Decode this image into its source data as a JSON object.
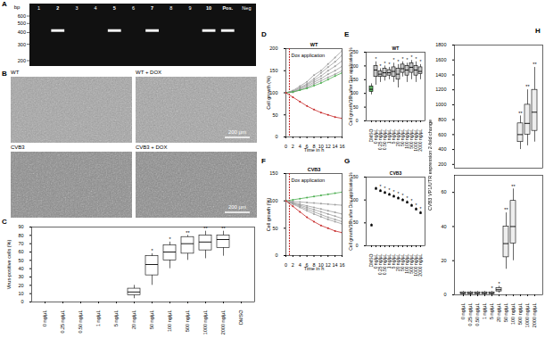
{
  "gel": {
    "panel": "A",
    "y_label": "bp",
    "marker_bp": [
      600,
      500,
      400,
      300,
      200
    ],
    "lanes": [
      "1",
      "2",
      "3",
      "4",
      "5",
      "6",
      "7",
      "8",
      "9",
      "10",
      "Pos.",
      "Neg"
    ],
    "band_lanes": [
      "2",
      "5",
      "7",
      "10",
      "Pos."
    ],
    "band_bp": 420
  },
  "micrographs": {
    "panel": "B",
    "images": [
      {
        "label": "WT"
      },
      {
        "label": "WT + DOX",
        "scale_bar": "200 µm"
      },
      {
        "label": "CVB3"
      },
      {
        "label": "CVB3 + DOX",
        "scale_bar": "200 µm"
      }
    ]
  },
  "chart_data": [
    {
      "panel": "C",
      "type": "box",
      "y_label": "Virus-positive cells (%)",
      "categories": [
        "0 ng/µL",
        "0.25 ng/µL",
        "0.50 ng/µL",
        "1 ng/µL",
        "5 ng/µL",
        "20 ng/µL",
        "50 ng/µL",
        "100 ng/µL",
        "500 ng/µL",
        "1000 ng/µL",
        "2000 ng/µL",
        "DMSO"
      ],
      "boxes": [
        {
          "min": 0,
          "q1": 0,
          "median": 0,
          "q3": 0,
          "max": 0
        },
        {
          "min": 0,
          "q1": 0,
          "median": 0,
          "q3": 0,
          "max": 0
        },
        {
          "min": 0,
          "q1": 0,
          "median": 0,
          "q3": 0,
          "max": 0
        },
        {
          "min": 0,
          "q1": 0,
          "median": 0,
          "q3": 0,
          "max": 0
        },
        {
          "min": 0,
          "q1": 0,
          "median": 0,
          "q3": 0,
          "max": 0
        },
        {
          "min": 4,
          "q1": 8,
          "median": 12,
          "q3": 16,
          "max": 20
        },
        {
          "min": 20,
          "q1": 32,
          "median": 45,
          "q3": 55,
          "max": 58
        },
        {
          "min": 40,
          "q1": 50,
          "median": 60,
          "q3": 68,
          "max": 72
        },
        {
          "min": 50,
          "q1": 58,
          "median": 70,
          "q3": 78,
          "max": 80
        },
        {
          "min": 52,
          "q1": 62,
          "median": 72,
          "q3": 80,
          "max": 85
        },
        {
          "min": 55,
          "q1": 65,
          "median": 75,
          "q3": 80,
          "max": 85
        },
        {
          "min": 0,
          "q1": 0,
          "median": 0,
          "q3": 0,
          "max": 0
        }
      ],
      "significance": [
        null,
        null,
        null,
        null,
        null,
        null,
        "*",
        "*",
        "**",
        "**",
        "**",
        null
      ],
      "color": "#ffffff",
      "ylim": [
        0,
        90
      ],
      "yticks": [
        0,
        10,
        20,
        30,
        40,
        50,
        60,
        70,
        80,
        90
      ]
    },
    {
      "panel": "D",
      "type": "line",
      "title": "WT",
      "x_label": "Time in h",
      "y_label": "Cell growth (%)",
      "annotation": "Dox application",
      "dox_time_h": 1,
      "marker": "circle",
      "x": [
        0,
        2,
        4,
        6,
        8,
        10,
        12,
        14,
        16
      ],
      "series": [
        {
          "color": "#9e9e9e",
          "values": [
            100,
            105,
            115,
            125,
            140,
            150,
            165,
            180,
            195
          ]
        },
        {
          "color": "#9e9e9e",
          "values": [
            100,
            104,
            112,
            120,
            132,
            145,
            158,
            170,
            185
          ]
        },
        {
          "color": "#9e9e9e",
          "values": [
            100,
            103,
            110,
            118,
            128,
            138,
            150,
            160,
            172
          ]
        },
        {
          "color": "#9e9e9e",
          "values": [
            100,
            102,
            108,
            115,
            124,
            132,
            142,
            150,
            160
          ]
        },
        {
          "color": "#9e9e9e",
          "values": [
            100,
            101,
            106,
            112,
            120,
            127,
            135,
            142,
            150
          ]
        },
        {
          "color": "#4caf50",
          "values": [
            100,
            102,
            106,
            110,
            116,
            122,
            130,
            138,
            145
          ]
        },
        {
          "color": "#c62828",
          "values": [
            100,
            90,
            80,
            70,
            62,
            55,
            50,
            45,
            42
          ]
        }
      ],
      "xlim": [
        0,
        16
      ],
      "xticks": [
        0,
        2,
        4,
        6,
        8,
        10,
        12,
        14,
        16
      ],
      "ylim": [
        0,
        200
      ],
      "yticks": [
        0,
        50,
        100,
        150,
        200
      ]
    },
    {
      "panel": "E",
      "type": "box",
      "title": "WT",
      "y_label": "Cell growth/16h after Dox application %",
      "categories": [
        "DMSO",
        "0 ng/µL",
        "0.25 ng/µL",
        "0.50 ng/µL",
        "1 ng/µL",
        "5 ng/µL",
        "20 ng/µL",
        "50 ng/µL",
        "100 ng/µL",
        "500 ng/µL",
        "1000 ng/µL",
        "2000 ng/µL"
      ],
      "boxes": [
        {
          "min": 95,
          "q1": 105,
          "median": 115,
          "q3": 125,
          "max": 135
        },
        {
          "min": 130,
          "q1": 160,
          "median": 185,
          "q3": 200,
          "max": 215
        },
        {
          "min": 140,
          "q1": 160,
          "median": 170,
          "q3": 180,
          "max": 190
        },
        {
          "min": 145,
          "q1": 160,
          "median": 175,
          "q3": 190,
          "max": 200
        },
        {
          "min": 150,
          "q1": 165,
          "median": 175,
          "q3": 185,
          "max": 195
        },
        {
          "min": 140,
          "q1": 160,
          "median": 180,
          "q3": 195,
          "max": 210
        },
        {
          "min": 120,
          "q1": 150,
          "median": 170,
          "q3": 190,
          "max": 205
        },
        {
          "min": 160,
          "q1": 175,
          "median": 190,
          "q3": 205,
          "max": 215
        },
        {
          "min": 140,
          "q1": 165,
          "median": 185,
          "q3": 200,
          "max": 210
        },
        {
          "min": 150,
          "q1": 175,
          "median": 195,
          "q3": 210,
          "max": 220
        },
        {
          "min": 140,
          "q1": 165,
          "median": 185,
          "q3": 200,
          "max": 215
        },
        {
          "min": 150,
          "q1": 170,
          "median": 180,
          "q3": 195,
          "max": 205
        }
      ],
      "significance": [
        null,
        "*",
        "*",
        "*",
        "*",
        "*",
        "*",
        "*",
        "*",
        "*",
        "*",
        "*"
      ],
      "colors": [
        "#66bb6a",
        "#c8c8c8",
        "#c8c8c8",
        "#c8c8c8",
        "#c8c8c8",
        "#c8c8c8",
        "#c8c8c8",
        "#c8c8c8",
        "#c8c8c8",
        "#c8c8c8",
        "#c8c8c8",
        "#c8c8c8"
      ],
      "ylim": [
        0,
        250
      ],
      "yticks": [
        0,
        50,
        100,
        150,
        200,
        250
      ]
    },
    {
      "panel": "F",
      "type": "line",
      "title": "CVB3",
      "x_label": "Time in h",
      "y_label": "Cell growth (%)",
      "annotation": "Dox application",
      "dox_time_h": 1,
      "marker": "circle",
      "x": [
        0,
        2,
        4,
        6,
        8,
        10,
        12,
        14,
        16
      ],
      "series": [
        {
          "color": "#4caf50",
          "values": [
            100,
            102,
            104,
            106,
            108,
            110,
            112,
            114,
            116
          ]
        },
        {
          "color": "#9e9e9e",
          "values": [
            100,
            99,
            98,
            97,
            96,
            95,
            94,
            93,
            92
          ]
        },
        {
          "color": "#9e9e9e",
          "values": [
            100,
            97,
            94,
            91,
            88,
            85,
            82,
            79,
            76
          ]
        },
        {
          "color": "#9e9e9e",
          "values": [
            100,
            96,
            92,
            88,
            84,
            80,
            76,
            72,
            68
          ]
        },
        {
          "color": "#9e9e9e",
          "values": [
            100,
            95,
            90,
            85,
            80,
            75,
            70,
            66,
            62
          ]
        },
        {
          "color": "#9e9e9e",
          "values": [
            100,
            94,
            88,
            82,
            76,
            71,
            66,
            62,
            58
          ]
        },
        {
          "color": "#c62828",
          "values": [
            100,
            90,
            80,
            70,
            62,
            55,
            50,
            45,
            42
          ]
        }
      ],
      "xlim": [
        0,
        16
      ],
      "xticks": [
        0,
        2,
        4,
        6,
        8,
        10,
        12,
        14,
        16
      ],
      "ylim": [
        0,
        150
      ],
      "yticks": [
        0,
        50,
        100,
        150
      ]
    },
    {
      "panel": "G",
      "type": "scatter",
      "title": "CVB3",
      "y_label": "Cell growth/16h after Dox application %",
      "categories": [
        "DMSO",
        "0 ng/µL",
        "0.25 ng/µL",
        "0.50 ng/µL",
        "1 ng/µL",
        "5 ng/µL",
        "20 ng/µL",
        "50 ng/µL",
        "100 ng/µL",
        "500 ng/µL",
        "1000 ng/µL",
        "2000 ng/µL"
      ],
      "values": [
        45,
        125,
        120,
        116,
        112,
        108,
        104,
        100,
        95,
        88,
        80,
        72
      ],
      "errors": [
        3,
        3,
        3,
        3,
        3,
        3,
        3,
        3,
        3,
        3,
        3,
        3
      ],
      "significance": [
        null,
        null,
        "*",
        "*",
        "*",
        "*",
        "*",
        "*",
        "*",
        "*",
        "*",
        "*"
      ],
      "color": "#000000",
      "marker": "square",
      "ylim": [
        0,
        150
      ],
      "yticks": [
        0,
        50,
        100,
        150
      ]
    },
    {
      "panel": "H",
      "type": "box",
      "y_label": "CVB3 VP1/UTR expression 2-fold change",
      "categories": [
        "0 ng/µL",
        "0.25 ng/µL",
        "0.50 ng/µL",
        "1 ng/µL",
        "5 ng/µL",
        "20 ng/µL",
        "50 ng/µL",
        "100 ng/µL",
        "500 ng/µL",
        "1000 ng/µL",
        "2000 ng/µL"
      ],
      "boxes": [
        {
          "min": 0,
          "q1": 0.5,
          "median": 1,
          "q3": 1.5,
          "max": 2
        },
        {
          "min": 0,
          "q1": 0.5,
          "median": 1,
          "q3": 1.5,
          "max": 2
        },
        {
          "min": 0,
          "q1": 0.5,
          "median": 1,
          "q3": 1.5,
          "max": 2
        },
        {
          "min": 0,
          "q1": 0.5,
          "median": 1,
          "q3": 1.5,
          "max": 2
        },
        {
          "min": 0,
          "q1": 0.5,
          "median": 1,
          "q3": 1.5,
          "max": 2
        },
        {
          "min": 1,
          "q1": 2,
          "median": 3,
          "q3": 4,
          "max": 5
        },
        {
          "min": 15,
          "q1": 22,
          "median": 30,
          "q3": 40,
          "max": 48
        },
        {
          "min": 20,
          "q1": 30,
          "median": 40,
          "q3": 55,
          "max": 62
        },
        {
          "min": 400,
          "q1": 500,
          "median": 600,
          "q3": 750,
          "max": 850
        },
        {
          "min": 450,
          "q1": 600,
          "median": 750,
          "q3": 1000,
          "max": 1200
        },
        {
          "min": 500,
          "q1": 650,
          "median": 900,
          "q3": 1200,
          "max": 1500
        }
      ],
      "significance": [
        null,
        null,
        null,
        null,
        "*",
        "*",
        "**",
        "**",
        "**",
        "**",
        "**"
      ],
      "color": "#eeeeee",
      "segments": [
        {
          "ylim": [
            150,
            1800
          ],
          "yticks": [
            200,
            400,
            600,
            800,
            1000,
            1200,
            1400,
            1600,
            1800
          ]
        },
        {
          "ylim": [
            0,
            70
          ],
          "yticks": [
            0,
            20,
            40,
            60
          ]
        }
      ]
    }
  ]
}
